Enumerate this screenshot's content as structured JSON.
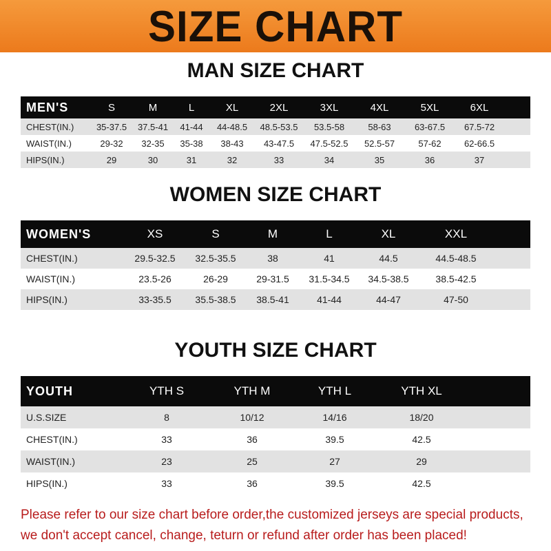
{
  "banner": {
    "title": "SIZE CHART",
    "color": "#ee8224"
  },
  "men": {
    "title": "MAN SIZE CHART",
    "header": "MEN'S",
    "sizes": [
      "S",
      "M",
      "L",
      "XL",
      "2XL",
      "3XL",
      "4XL",
      "5XL",
      "6XL"
    ],
    "rows": [
      {
        "label": "CHEST(IN.)",
        "values": [
          "35-37.5",
          "37.5-41",
          "41-44",
          "44-48.5",
          "48.5-53.5",
          "53.5-58",
          "58-63",
          "63-67.5",
          "67.5-72"
        ]
      },
      {
        "label": "WAIST(IN.)",
        "values": [
          "29-32",
          "32-35",
          "35-38",
          "38-43",
          "43-47.5",
          "47.5-52.5",
          "52.5-57",
          "57-62",
          "62-66.5"
        ]
      },
      {
        "label": "HIPS(IN.)",
        "values": [
          "29",
          "30",
          "31",
          "32",
          "33",
          "34",
          "35",
          "36",
          "37"
        ]
      }
    ]
  },
  "women": {
    "title": "WOMEN SIZE CHART",
    "header": "WOMEN'S",
    "sizes": [
      "XS",
      "S",
      "M",
      "L",
      "XL",
      "XXL"
    ],
    "rows": [
      {
        "label": "CHEST(IN.)",
        "values": [
          "29.5-32.5",
          "32.5-35.5",
          "38",
          "41",
          "44.5",
          "44.5-48.5"
        ]
      },
      {
        "label": "WAIST(IN.)",
        "values": [
          "23.5-26",
          "26-29",
          "29-31.5",
          "31.5-34.5",
          "34.5-38.5",
          "38.5-42.5"
        ]
      },
      {
        "label": "HIPS(IN.)",
        "values": [
          "33-35.5",
          "35.5-38.5",
          "38.5-41",
          "41-44",
          "44-47",
          "47-50"
        ]
      }
    ]
  },
  "youth": {
    "title": "YOUTH SIZE CHART",
    "header": "YOUTH",
    "sizes": [
      "YTH S",
      "YTH M",
      "YTH L",
      "YTH XL"
    ],
    "rows": [
      {
        "label": "U.S.SIZE",
        "values": [
          "8",
          "10/12",
          "14/16",
          "18/20"
        ]
      },
      {
        "label": "CHEST(IN.)",
        "values": [
          "33",
          "36",
          "39.5",
          "42.5"
        ]
      },
      {
        "label": "WAIST(IN.)",
        "values": [
          "23",
          "25",
          "27",
          "29"
        ]
      },
      {
        "label": "HIPS(IN.)",
        "values": [
          "33",
          "36",
          "39.5",
          "42.5"
        ]
      }
    ]
  },
  "note": {
    "line1": "Please refer to our size chart before order,the customized jerseys are special products,",
    "line2": "we don't accept cancel, change, teturn or refund after order has been placed!"
  }
}
